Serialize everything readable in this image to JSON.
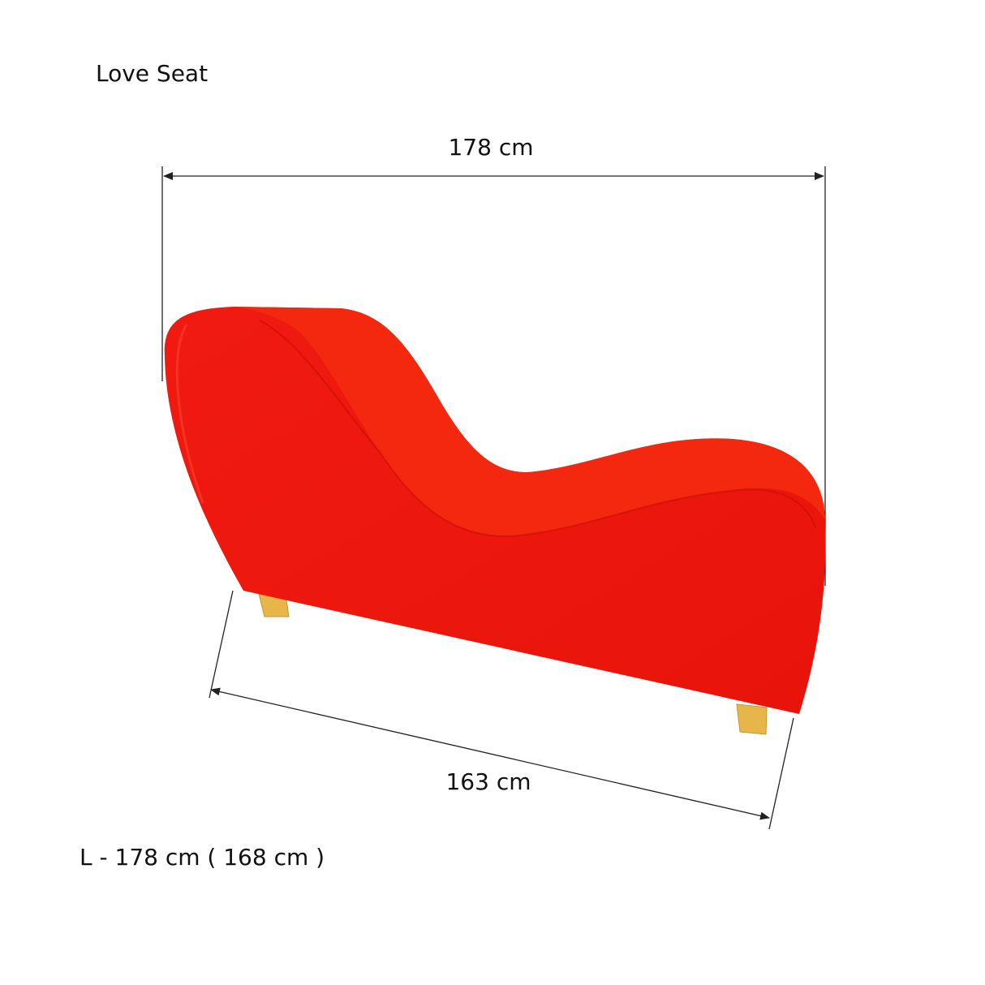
{
  "title": "Love Seat",
  "dimensions": {
    "width": "178 cm",
    "length": "163 cm"
  },
  "note": "L - 178 cm ( 168 cm )"
}
